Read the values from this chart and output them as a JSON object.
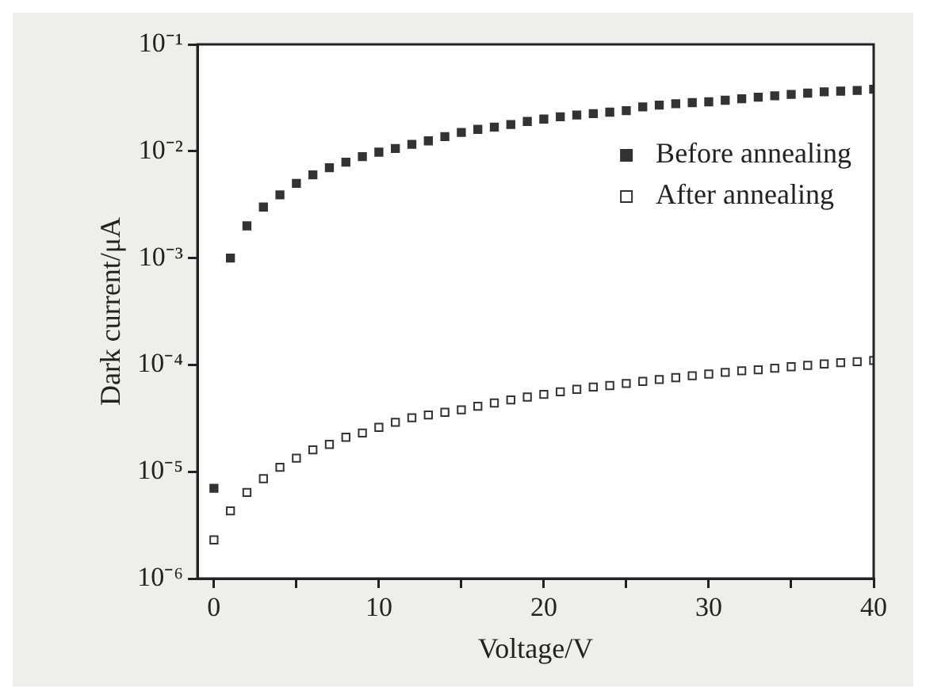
{
  "chart_data": {
    "type": "scatter",
    "xlabel": "Voltage/V",
    "ylabel": "Dark current/μA",
    "log": "y",
    "marker": "square",
    "legend": "top right",
    "grid": false,
    "x": [
      0,
      1,
      2,
      3,
      4,
      5,
      6,
      7,
      8,
      9,
      10,
      11,
      12,
      13,
      14,
      15,
      16,
      17,
      18,
      19,
      20,
      21,
      22,
      23,
      24,
      25,
      26,
      27,
      28,
      29,
      30,
      31,
      32,
      33,
      34,
      35,
      36,
      37,
      38,
      39,
      40
    ],
    "xlim": [
      -1,
      40
    ],
    "xticks": [
      0,
      {
        "value": 5,
        "label": null
      },
      10,
      {
        "value": 15,
        "label": null
      },
      20,
      {
        "value": 25,
        "label": null
      },
      30,
      {
        "value": 35,
        "label": null
      },
      40
    ],
    "ylim": [
      1e-06,
      0.1
    ],
    "yticks": [
      {
        "value": 1e-06,
        "label": "10⁻⁶"
      },
      {
        "value": 1e-05,
        "label": "10⁻⁵"
      },
      {
        "value": 0.0001,
        "label": "10⁻⁴"
      },
      {
        "value": 0.001,
        "label": "10⁻³"
      },
      {
        "value": 0.01,
        "label": "10⁻²"
      },
      {
        "value": 0.1,
        "label": "10⁻¹"
      }
    ],
    "series": [
      {
        "name": "Before annealing",
        "color": "#333333",
        "values": [
          7e-06,
          0.001,
          0.002,
          0.003,
          0.0039,
          0.005,
          0.006,
          0.007,
          0.0079,
          0.0089,
          0.0098,
          0.0106,
          0.0116,
          0.0125,
          0.0137,
          0.015,
          0.016,
          0.0168,
          0.0178,
          0.019,
          0.02,
          0.021,
          0.0218,
          0.0225,
          0.0232,
          0.024,
          0.026,
          0.027,
          0.0278,
          0.0285,
          0.029,
          0.03,
          0.031,
          0.032,
          0.033,
          0.034,
          0.035,
          0.036,
          0.0365,
          0.037,
          0.038
        ]
      },
      {
        "name": "After annealing",
        "color": "#333333",
        "values": [
          2.3e-06,
          4.3e-06,
          6.4e-06,
          8.6e-06,
          1.1e-05,
          1.34e-05,
          1.6e-05,
          1.8e-05,
          2.1e-05,
          2.3e-05,
          2.6e-05,
          2.9e-05,
          3.2e-05,
          3.4e-05,
          3.6e-05,
          3.8e-05,
          4.1e-05,
          4.4e-05,
          4.7e-05,
          5e-05,
          5.3e-05,
          5.6e-05,
          5.9e-05,
          6.2e-05,
          6.4e-05,
          6.7e-05,
          7e-05,
          7.3e-05,
          7.6e-05,
          7.9e-05,
          8.2e-05,
          8.5e-05,
          8.8e-05,
          9e-05,
          9.3e-05,
          9.6e-05,
          9.9e-05,
          0.000102,
          0.000105,
          0.000107,
          0.00011
        ]
      }
    ]
  }
}
